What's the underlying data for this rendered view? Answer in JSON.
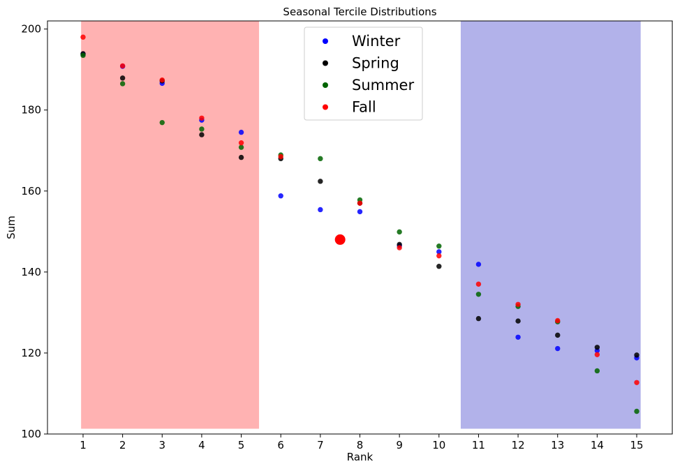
{
  "chart_data": {
    "type": "scatter",
    "title": "Seasonal Tercile Distributions",
    "xlabel": "Rank",
    "ylabel": "Sum",
    "xlim": [
      0.1,
      15.9
    ],
    "ylim": [
      100,
      202
    ],
    "xticks": [
      1,
      2,
      3,
      4,
      5,
      6,
      7,
      8,
      9,
      10,
      11,
      12,
      13,
      14,
      15
    ],
    "yticks": [
      100,
      120,
      140,
      160,
      180,
      200
    ],
    "grid": false,
    "legend_position": "top-center",
    "shaded_regions": [
      {
        "x0": 0.95,
        "x1": 5.45,
        "y0": 101.3,
        "y1": 202,
        "color": "#ff0000",
        "alpha": 0.3
      },
      {
        "x0": 10.55,
        "x1": 15.1,
        "y0": 101.3,
        "y1": 202,
        "color": "#0000bb",
        "alpha": 0.3
      }
    ],
    "series": [
      {
        "name": "Winter",
        "color": "#0000ff",
        "points": [
          [
            1,
            193.8
          ],
          [
            2,
            190.8
          ],
          [
            3,
            186.6
          ],
          [
            4,
            177.5
          ],
          [
            5,
            174.5
          ],
          [
            6,
            158.8
          ],
          [
            7,
            155.4
          ],
          [
            8,
            154.9
          ],
          [
            9,
            146.5
          ],
          [
            10,
            145.0
          ],
          [
            11,
            141.9
          ],
          [
            12,
            123.9
          ],
          [
            13,
            121.1
          ],
          [
            14,
            120.6
          ],
          [
            15,
            118.8
          ]
        ]
      },
      {
        "name": "Spring",
        "color": "#000000",
        "points": [
          [
            1,
            193.9
          ],
          [
            2,
            187.9
          ],
          [
            3,
            187.2
          ],
          [
            4,
            173.9
          ],
          [
            5,
            168.3
          ],
          [
            6,
            168.0
          ],
          [
            7,
            162.4
          ],
          [
            8,
            157.0
          ],
          [
            9,
            146.8
          ],
          [
            10,
            141.4
          ],
          [
            11,
            128.5
          ],
          [
            12,
            127.9
          ],
          [
            13,
            124.4
          ],
          [
            14,
            121.4
          ],
          [
            15,
            119.5
          ]
        ]
      },
      {
        "name": "Summer",
        "color": "#006400",
        "points": [
          [
            1,
            193.5
          ],
          [
            2,
            186.5
          ],
          [
            3,
            176.9
          ],
          [
            4,
            175.3
          ],
          [
            5,
            170.8
          ],
          [
            6,
            168.9
          ],
          [
            7,
            168.0
          ],
          [
            8,
            157.8
          ],
          [
            9,
            149.9
          ],
          [
            10,
            146.4
          ],
          [
            11,
            134.5
          ],
          [
            12,
            131.5
          ],
          [
            13,
            127.7
          ],
          [
            14,
            115.6
          ],
          [
            15,
            105.6
          ]
        ]
      },
      {
        "name": "Fall",
        "color": "#ff0000",
        "points": [
          [
            1,
            198.0
          ],
          [
            2,
            190.9
          ],
          [
            3,
            187.4
          ],
          [
            4,
            178.0
          ],
          [
            5,
            171.9
          ],
          [
            6,
            168.5
          ],
          [
            8,
            157.0
          ],
          [
            9,
            146.0
          ],
          [
            10,
            144.0
          ],
          [
            11,
            137.0
          ],
          [
            12,
            132.0
          ],
          [
            13,
            128.0
          ],
          [
            14,
            119.6
          ],
          [
            15,
            112.7
          ]
        ]
      }
    ],
    "highlight_point": {
      "x": 7.5,
      "y": 148.0,
      "color": "#ff0000"
    }
  }
}
